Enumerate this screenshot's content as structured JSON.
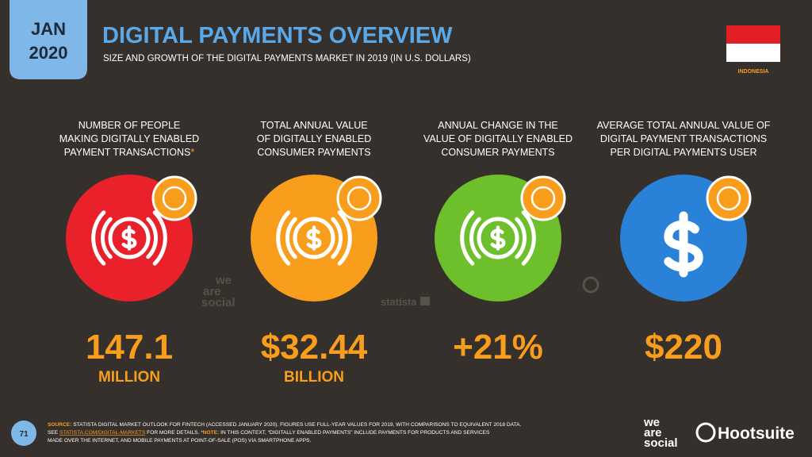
{
  "header": {
    "date_month": "JAN",
    "date_year": "2020",
    "title": "DIGITAL PAYMENTS OVERVIEW",
    "subtitle": "SIZE AND GROWTH OF THE DIGITAL PAYMENTS MARKET IN 2019 (IN U.S. DOLLARS)",
    "country": "INDONESIA"
  },
  "stats": [
    {
      "label_lines": [
        "NUMBER OF PEOPLE",
        "MAKING DIGITALLY ENABLED",
        "PAYMENT TRANSACTIONS"
      ],
      "asterisk": "*",
      "value": "147.1",
      "unit": "MILLION"
    },
    {
      "label_lines": [
        "TOTAL ANNUAL VALUE",
        "OF DIGITALLY ENABLED",
        "CONSUMER PAYMENTS"
      ],
      "value": "$32.44",
      "unit": "BILLION"
    },
    {
      "label_lines": [
        "ANNUAL CHANGE IN THE",
        "VALUE OF DIGITALLY ENABLED",
        "CONSUMER PAYMENTS"
      ],
      "value": "+21%"
    },
    {
      "label_lines": [
        "AVERAGE TOTAL ANNUAL VALUE OF",
        "DIGITAL PAYMENT TRANSACTIONS",
        "PER DIGITAL PAYMENTS USER"
      ],
      "value": "$220"
    }
  ],
  "watermarks": {
    "we_are_social": [
      "we",
      "are",
      "social"
    ],
    "statista": "statista"
  },
  "footer": {
    "page_number": "71",
    "source_lines": [
      [
        "SOURCE:",
        " STATISTA DIGITAL MARKET OUTLOOK FOR FINTECH (ACCESSED JANUARY 2020). FIGURES USE FULL-YEAR VALUES FOR 2019, WITH COMPARISONS TO EQUIVALENT 2018 DATA."
      ],
      [
        "SEE ",
        "STATISTA.COM/DIGITAL-MARKETS",
        " FOR MORE DETAILS. ",
        "*NOTE:",
        " IN THIS CONTEXT, “DIGITALLY ENABLED PAYMENTS” INCLUDE PAYMENTS FOR PRODUCTS AND SERVICES"
      ],
      [
        "MADE OVER THE INTERNET, AND MOBILE PAYMENTS AT POINT-OF-SALE (POS) VIA SMARTPHONE APPS."
      ]
    ],
    "logos": {
      "we_are_social": [
        "we",
        "are",
        "social"
      ],
      "hootsuite": "Hootsuite"
    }
  }
}
